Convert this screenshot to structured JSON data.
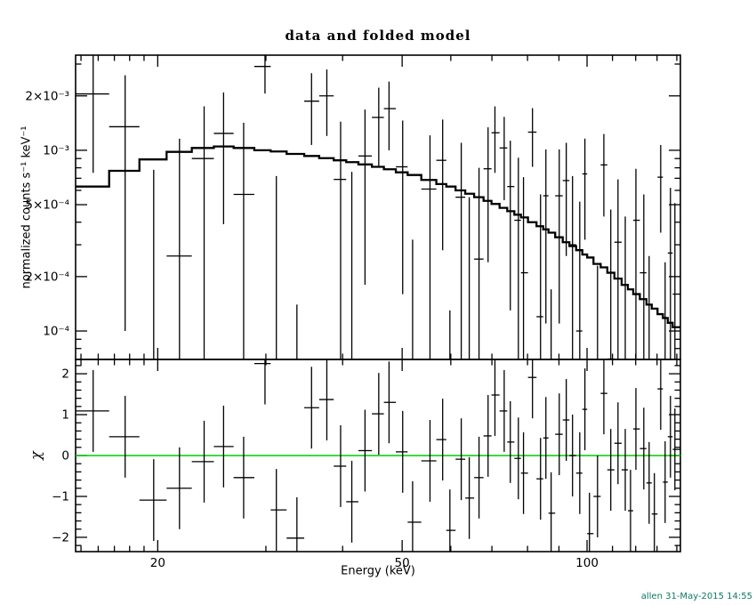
{
  "page": {
    "title": "data and folded model",
    "timestamp": "allen 31-May-2015 14:55",
    "timestamp_color": "#0c7a5e",
    "background": "#ffffff",
    "frame_color": "#000000",
    "data_color": "#000000"
  },
  "chart_data": [
    {
      "panel": "top",
      "type": "scatter",
      "title": "data and folded model",
      "ylabel": "normalized counts s⁻¹ keV⁻¹",
      "xlabel": "",
      "xscale": "log",
      "yscale": "log",
      "xlim_kev": [
        14.7,
        141.9
      ],
      "ylim": [
        6.96e-05,
        0.00336
      ],
      "grid": false,
      "legend": "none",
      "x_ticks": {
        "major": [
          {
            "v": 20,
            "label": "20"
          },
          {
            "v": 50,
            "label": "50"
          },
          {
            "v": 100,
            "label": "100"
          }
        ],
        "minor": [
          15,
          16,
          17,
          18,
          19,
          30,
          40,
          60,
          70,
          80,
          90,
          110,
          120,
          130,
          140
        ]
      },
      "y_ticks": {
        "major": [
          {
            "v": 0.0001,
            "label": "10⁻⁴"
          },
          {
            "v": 0.0002,
            "label": "2×10⁻⁴"
          },
          {
            "v": 0.0005,
            "label": "5×10⁻⁴"
          },
          {
            "v": 0.001,
            "label": "10⁻³"
          },
          {
            "v": 0.002,
            "label": "2×10⁻³"
          }
        ],
        "minor": [
          8e-05,
          9e-05,
          0.0003,
          0.0004,
          0.0006,
          0.0007,
          0.0008,
          0.0009,
          0.003
        ]
      },
      "value_unit": "1e-3 counts s⁻¹ keV⁻¹",
      "marker": "cross-with-bin-width-and-error-bar",
      "energy_kev": [
        15.7,
        17.7,
        19.7,
        21.7,
        23.8,
        25.6,
        27.6,
        29.9,
        31.2,
        33.7,
        35.6,
        37.7,
        39.7,
        41.4,
        43.5,
        45.8,
        47.6,
        50.1,
        52.0,
        55.5,
        58.2,
        59.8,
        62.4,
        64.3,
        66.7,
        69.0,
        70.8,
        73.3,
        75.0,
        77.3,
        78.8,
        81.5,
        84.0,
        85.7,
        87.4,
        90.1,
        92.5,
        94.7,
        97.3,
        99.2,
        100.9,
        104.0,
        106.5,
        109.3,
        112.3,
        115.4,
        117.7,
        120.1,
        123.7,
        126.2,
        128.7,
        131.8,
        134.0,
        136.7,
        139.0
      ],
      "data_counts": [
        2.05,
        1.35,
        -0.42,
        0.26,
        0.9,
        1.24,
        0.57,
        2.91,
        -0.08,
        -0.66,
        1.87,
        2.0,
        0.69,
        0.01,
        0.93,
        1.52,
        1.7,
        0.81,
        -0.33,
        0.61,
        0.88,
        -0.47,
        0.55,
        0.0,
        0.25,
        0.79,
        1.25,
        1.03,
        0.63,
        0.41,
        0.21,
        1.26,
        0.12,
        0.56,
        -0.28,
        0.56,
        0.68,
        0.3,
        0.1,
        0.74,
        -0.51,
        -0.17,
        0.83,
        0.07,
        0.31,
        0.05,
        -0.34,
        0.41,
        0.21,
        -0.1,
        -0.38,
        0.71,
        -0.11,
        0.27,
        0.16
      ],
      "data_err": [
        1.3,
        1.25,
        1.2,
        0.9,
        0.85,
        0.85,
        0.85,
        0.85,
        0.8,
        0.8,
        0.8,
        0.8,
        0.75,
        0.75,
        0.75,
        0.7,
        0.7,
        0.65,
        0.65,
        0.6,
        0.6,
        0.6,
        0.55,
        0.55,
        0.55,
        0.55,
        0.5,
        0.5,
        0.5,
        0.5,
        0.5,
        0.45,
        0.45,
        0.45,
        0.45,
        0.45,
        0.42,
        0.42,
        0.42,
        0.42,
        0.4,
        0.4,
        0.4,
        0.4,
        0.38,
        0.38,
        0.38,
        0.38,
        0.36,
        0.36,
        0.36,
        0.36,
        0.35,
        0.35,
        0.35
      ],
      "model_counts": [
        0.63,
        0.77,
        0.89,
        0.98,
        1.03,
        1.05,
        1.03,
        1.0,
        0.985,
        0.955,
        0.93,
        0.905,
        0.88,
        0.86,
        0.835,
        0.81,
        0.785,
        0.755,
        0.73,
        0.685,
        0.65,
        0.63,
        0.6,
        0.575,
        0.55,
        0.525,
        0.505,
        0.48,
        0.46,
        0.44,
        0.425,
        0.4,
        0.38,
        0.365,
        0.35,
        0.33,
        0.31,
        0.295,
        0.28,
        0.265,
        0.255,
        0.235,
        0.225,
        0.21,
        0.195,
        0.18,
        0.17,
        0.16,
        0.15,
        0.14,
        0.133,
        0.124,
        0.118,
        0.111,
        0.105
      ]
    },
    {
      "panel": "bottom",
      "type": "scatter",
      "ylabel": "χ",
      "xlabel": "Energy (keV)",
      "xscale": "log",
      "yscale": "linear",
      "xlim_kev": [
        14.7,
        141.9
      ],
      "ylim": [
        -2.35,
        2.35
      ],
      "grid": false,
      "y_ticks": {
        "major": [
          {
            "v": -2,
            "label": "−2"
          },
          {
            "v": -1,
            "label": "−1"
          },
          {
            "v": 0,
            "label": "0"
          },
          {
            "v": 1,
            "label": "1"
          },
          {
            "v": 2,
            "label": "2"
          }
        ],
        "minor": [
          -2.2,
          -1.8,
          -1.6,
          -1.4,
          -1.2,
          -0.8,
          -0.6,
          -0.4,
          -0.2,
          0.2,
          0.4,
          0.6,
          0.8,
          1.2,
          1.4,
          1.6,
          1.8,
          2.2
        ]
      },
      "chi": [
        1.09,
        0.46,
        -1.09,
        -0.8,
        -0.15,
        0.22,
        -0.54,
        2.25,
        -1.33,
        -2.02,
        1.17,
        1.37,
        -0.26,
        -1.13,
        0.12,
        1.02,
        1.3,
        0.09,
        -1.63,
        -0.13,
        0.39,
        -1.83,
        -0.09,
        -1.04,
        -0.54,
        0.48,
        1.48,
        1.09,
        0.33,
        -0.07,
        -0.43,
        1.91,
        -0.57,
        0.43,
        -1.41,
        0.52,
        0.87,
        0.0,
        -0.43,
        1.13,
        -1.91,
        -1.0,
        1.52,
        -0.35,
        0.3,
        -0.35,
        -1.35,
        0.65,
        0.17,
        -0.67,
        -1.43,
        1.63,
        -0.65,
        0.46,
        0.15
      ],
      "chi_err": 1.0,
      "zero_line_color": "#00cc00"
    }
  ]
}
